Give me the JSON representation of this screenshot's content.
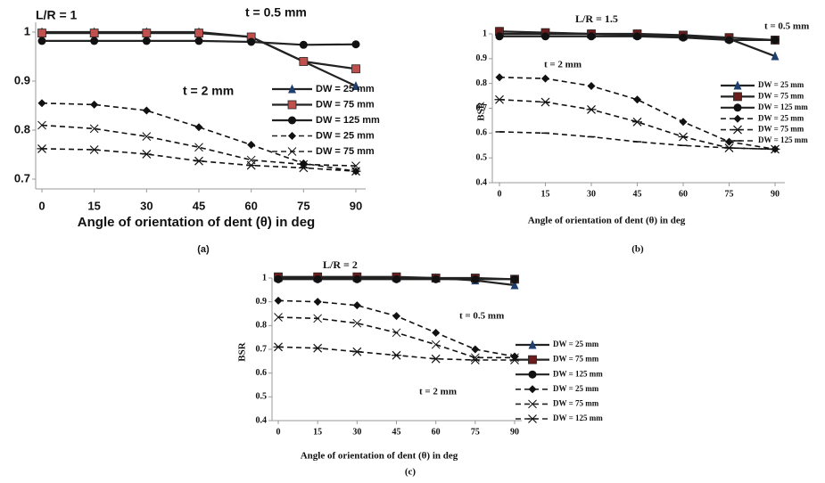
{
  "chart_data": [
    {
      "type": "line",
      "title": "L/R = 1",
      "caption": "(a)",
      "annotations": [
        "t = 0.5 mm",
        "t = 2 mm"
      ],
      "xlabel": "Angle of orientation of dent (θ) in deg",
      "x": [
        0,
        15,
        30,
        45,
        60,
        75,
        90
      ],
      "xlim": [
        0,
        90
      ],
      "xticks": [
        0,
        15,
        30,
        45,
        60,
        75,
        90
      ],
      "ylim": [
        0.68,
        1.02
      ],
      "yticks": [
        0.7,
        0.8,
        0.9,
        1
      ],
      "series": [
        {
          "name": "DW = 25 mm",
          "color": "#1f3f6e",
          "marker": "triangle",
          "dashed": false,
          "values": [
            1.0,
            1.0,
            1.0,
            1.0,
            0.99,
            0.94,
            0.89
          ]
        },
        {
          "name": "DW = 75 mm",
          "color": "#c0504d",
          "marker": "square",
          "dashed": false,
          "values": [
            0.998,
            0.998,
            0.998,
            0.998,
            0.99,
            0.94,
            0.925
          ]
        },
        {
          "name": "DW = 125 mm",
          "color": "#111111",
          "marker": "circle",
          "dashed": false,
          "values": [
            0.982,
            0.982,
            0.982,
            0.982,
            0.98,
            0.974,
            0.975
          ]
        },
        {
          "name": "DW = 25 mm",
          "color": "#111111",
          "marker": "diamond",
          "dashed": true,
          "values": [
            0.855,
            0.852,
            0.84,
            0.806,
            0.77,
            0.732,
            0.716
          ]
        },
        {
          "name": "DW = 75 mm",
          "color": "#111111",
          "marker": "x",
          "dashed": true,
          "values": [
            0.81,
            0.803,
            0.787,
            0.765,
            0.739,
            0.73,
            0.727
          ]
        },
        {
          "color": "#111111",
          "marker": "asterisk",
          "dashed": true,
          "values": [
            0.762,
            0.76,
            0.751,
            0.737,
            0.728,
            0.723,
            0.716
          ]
        }
      ]
    },
    {
      "type": "line",
      "title": "L/R = 1.5",
      "caption": "(b)",
      "annotations": [
        "t = 0.5 mm",
        "t = 2 mm"
      ],
      "xlabel": "Angle of orientation of dent (θ) in deg",
      "ylabel": "BSR",
      "x": [
        0,
        15,
        30,
        45,
        60,
        75,
        90
      ],
      "xlim": [
        0,
        90
      ],
      "xticks": [
        0,
        15,
        30,
        45,
        60,
        75,
        90
      ],
      "ylim": [
        0.4,
        1.0
      ],
      "yticks": [
        0.4,
        0.5,
        0.6,
        0.7,
        0.8,
        0.9,
        1
      ],
      "series": [
        {
          "name": "DW = 25 mm",
          "color": "#1f3f6e",
          "marker": "triangle",
          "dashed": false,
          "values": [
            1.0,
            1.0,
            1.0,
            0.995,
            0.99,
            0.98,
            0.91
          ]
        },
        {
          "name": "DW = 75 mm",
          "color": "#6b1d1d",
          "marker": "square",
          "dashed": false,
          "values": [
            1.01,
            1.005,
            1.0,
            1.0,
            0.995,
            0.985,
            0.975
          ]
        },
        {
          "name": "DW = 125 mm",
          "color": "#111111",
          "marker": "circle",
          "dashed": false,
          "values": [
            0.99,
            0.99,
            0.99,
            0.99,
            0.985,
            0.975,
            0.975
          ]
        },
        {
          "name": "DW = 25 mm",
          "color": "#111111",
          "marker": "diamond",
          "dashed": true,
          "values": [
            0.825,
            0.82,
            0.79,
            0.735,
            0.645,
            0.565,
            0.535
          ]
        },
        {
          "name": "DW = 75 mm",
          "color": "#111111",
          "marker": "asterisk",
          "dashed": true,
          "values": [
            0.735,
            0.725,
            0.695,
            0.645,
            0.585,
            0.54,
            0.535
          ]
        },
        {
          "name": "DW = 125 mm",
          "color": "#111111",
          "marker": "dash",
          "dashed": true,
          "values": [
            0.605,
            0.6,
            0.585,
            0.565,
            0.55,
            0.54,
            0.535
          ]
        }
      ]
    },
    {
      "type": "line",
      "title": "L/R = 2",
      "caption": "(c)",
      "annotations": [
        "t = 0.5 mm",
        "t = 2 mm"
      ],
      "xlabel": "Angle of orientation of dent (θ) in deg",
      "ylabel": "BSR",
      "x": [
        0,
        15,
        30,
        45,
        60,
        75,
        90
      ],
      "xlim": [
        0,
        90
      ],
      "xticks": [
        0,
        15,
        30,
        45,
        60,
        75,
        90
      ],
      "ylim": [
        0.4,
        1.0
      ],
      "yticks": [
        0.4,
        0.5,
        0.6,
        0.7,
        0.8,
        0.9,
        1
      ],
      "series": [
        {
          "name": "DW = 25  mm",
          "color": "#1f3f6e",
          "marker": "triangle",
          "dashed": false,
          "values": [
            1.0,
            1.0,
            1.0,
            1.0,
            1.0,
            0.99,
            0.97
          ]
        },
        {
          "name": "DW = 75  mm",
          "color": "#6b1d1d",
          "marker": "square",
          "dashed": false,
          "values": [
            1.005,
            1.005,
            1.005,
            1.005,
            1.0,
            1.0,
            0.995
          ]
        },
        {
          "name": "DW = 125 mm",
          "color": "#111111",
          "marker": "circle",
          "dashed": false,
          "values": [
            0.995,
            0.995,
            0.995,
            0.995,
            0.995,
            0.995,
            0.995
          ]
        },
        {
          "name": "DW = 25 mm",
          "color": "#111111",
          "marker": "diamond",
          "dashed": true,
          "values": [
            0.905,
            0.9,
            0.885,
            0.84,
            0.77,
            0.7,
            0.67
          ]
        },
        {
          "name": "DW = 75 mm",
          "color": "#111111",
          "marker": "x",
          "dashed": true,
          "values": [
            0.835,
            0.83,
            0.81,
            0.77,
            0.72,
            0.665,
            0.665
          ]
        },
        {
          "name": "DW = 125 mm",
          "color": "#111111",
          "marker": "asterisk",
          "dashed": true,
          "values": [
            0.71,
            0.705,
            0.69,
            0.675,
            0.66,
            0.655,
            0.655
          ]
        }
      ]
    }
  ]
}
